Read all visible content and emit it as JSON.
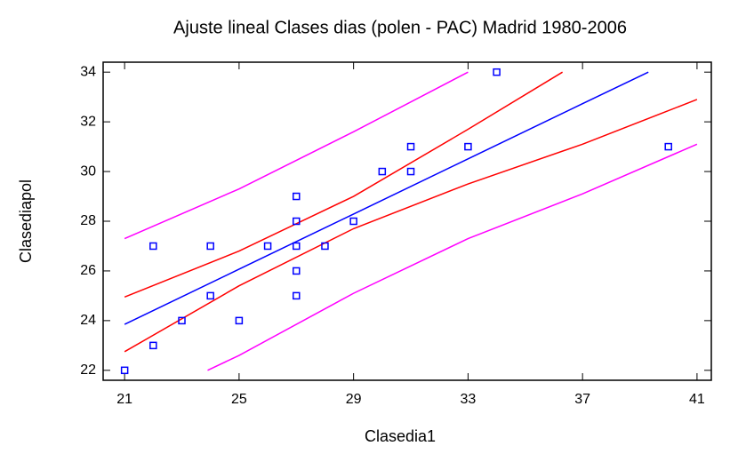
{
  "chart_data": {
    "type": "scatter",
    "title": "Ajuste lineal Clases dias (polen - PAC) Madrid 1980-2006",
    "x_label": "Clasedia1",
    "y_label": "Clasediapol",
    "xlim": [
      20.25,
      41.5
    ],
    "ylim": [
      21.6,
      34.4
    ],
    "xticks": [
      21,
      25,
      29,
      33,
      37,
      41
    ],
    "yticks": [
      22,
      24,
      26,
      28,
      30,
      32,
      34
    ],
    "series": [
      {
        "type": "scatter",
        "color": "#0000ff",
        "x": [
          21,
          22,
          22,
          23,
          24,
          24,
          25,
          26,
          27,
          27,
          27,
          27,
          27,
          28,
          29,
          30,
          31,
          31,
          33,
          34,
          40
        ],
        "values": [
          22,
          27,
          23,
          24,
          27,
          25,
          24,
          27,
          29,
          28,
          27,
          26,
          25,
          27,
          28,
          30,
          31,
          30,
          31,
          34,
          31
        ]
      },
      {
        "type": "line",
        "color": "#0000ff",
        "x": [
          21,
          25,
          29,
          33,
          37,
          39.3
        ],
        "values": [
          23.85,
          26.07,
          28.29,
          30.51,
          32.73,
          34.0
        ]
      },
      {
        "type": "line",
        "color": "#ff0000",
        "x": [
          21,
          25,
          29,
          33,
          36.3
        ],
        "values": [
          24.95,
          26.8,
          29.0,
          31.7,
          34.0
        ]
      },
      {
        "type": "line",
        "color": "#ff0000",
        "x": [
          21,
          25,
          29,
          33,
          37,
          41
        ],
        "values": [
          22.75,
          25.4,
          27.7,
          29.5,
          31.1,
          32.9
        ]
      },
      {
        "type": "line",
        "color": "#ff00ff",
        "x": [
          21,
          25,
          29,
          33
        ],
        "values": [
          27.3,
          29.3,
          31.6,
          34.0
        ]
      },
      {
        "type": "line",
        "color": "#ff00ff",
        "x": [
          23.9,
          25,
          29,
          33,
          37,
          41
        ],
        "values": [
          22.0,
          22.6,
          25.1,
          27.3,
          29.1,
          31.1
        ]
      }
    ]
  }
}
